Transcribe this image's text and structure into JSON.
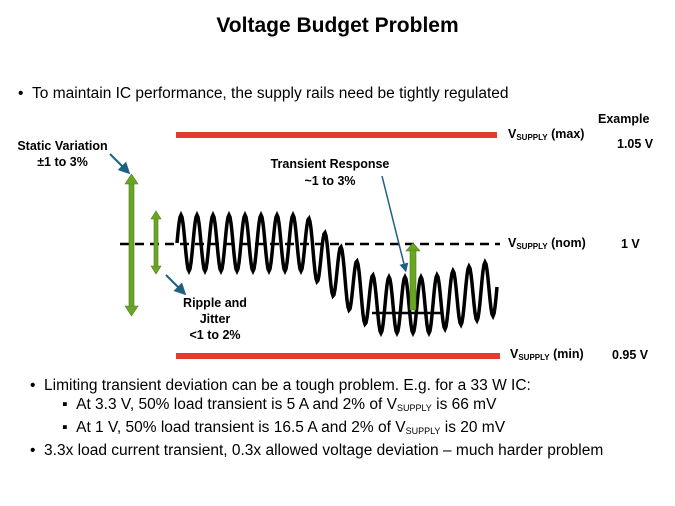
{
  "title": "Voltage Budget Problem",
  "intro_bullet": "To maintain IC performance, the supply rails need be tightly regulated",
  "diagram": {
    "example_header": "Example",
    "rails": [
      {
        "v": "V",
        "sub": "SUPPLY",
        "suffix": " (max)",
        "example": "1.05 V"
      },
      {
        "v": "V",
        "sub": "SUPPLY",
        "suffix": " (nom)",
        "example": "1 V"
      },
      {
        "v": "V",
        "sub": "SUPPLY",
        "suffix": " (min)",
        "example": "0.95 V"
      }
    ],
    "static_variation": {
      "title": "Static Variation",
      "range": "±1 to 3%"
    },
    "transient_response": {
      "title": "Transient Response",
      "range": "~1 to 3%"
    },
    "ripple": {
      "line1": "Ripple and",
      "line2": "Jitter",
      "range": "<1 to 2%"
    },
    "colors": {
      "rail": "#e53a2e",
      "arrow": "#6aa624",
      "pointer": "#1f5f84"
    }
  },
  "bullets": [
    {
      "text": "Limiting transient deviation can be a tough problem. E.g. for a 33 W IC:"
    },
    {
      "pre": "At 3.3 V, 50% load transient is 5 A and 2% of V",
      "sub": "SUPPLY",
      "post": " is 66 mV"
    },
    {
      "pre": "At 1 V, 50% load transient is 16.5 A and 2% of V",
      "sub": "SUPPLY",
      "post": " is 20 mV"
    },
    {
      "text": "3.3x load current transient, 0.3x allowed voltage deviation – much harder problem"
    }
  ]
}
